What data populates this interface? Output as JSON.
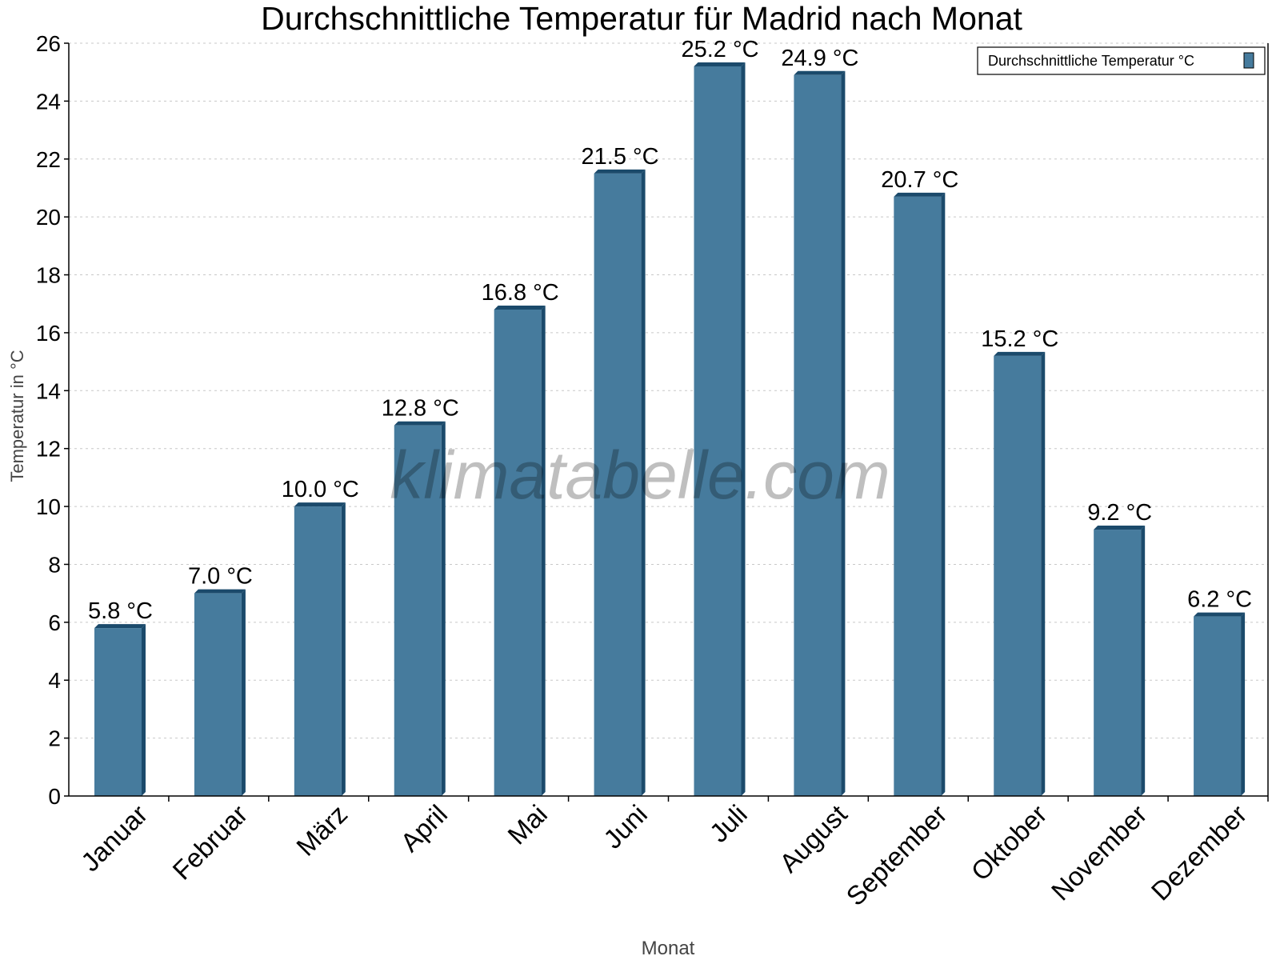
{
  "chart_data": {
    "type": "bar",
    "title": "Durchschnittliche Temperatur für Madrid nach Monat",
    "xlabel": "Monat",
    "ylabel": "Temperatur in °C",
    "categories": [
      "Januar",
      "Februar",
      "März",
      "April",
      "Mai",
      "Juni",
      "Juli",
      "August",
      "September",
      "Oktober",
      "November",
      "Dezember"
    ],
    "series": [
      {
        "name": "Durchschnittliche Temperatur °C",
        "values": [
          5.8,
          7.0,
          10.0,
          12.8,
          16.8,
          21.5,
          25.2,
          24.9,
          20.7,
          15.2,
          9.2,
          6.2
        ]
      }
    ],
    "data_labels": [
      "5.8 °C",
      "7.0 °C",
      "10.0 °C",
      "12.8 °C",
      "16.8 °C",
      "21.5 °C",
      "25.2 °C",
      "24.9 °C",
      "20.7 °C",
      "15.2 °C",
      "9.2 °C",
      "6.2 °C"
    ],
    "ylim": [
      0,
      26
    ],
    "yticks": [
      0,
      2,
      4,
      6,
      8,
      10,
      12,
      14,
      16,
      18,
      20,
      22,
      24,
      26
    ],
    "grid": true,
    "legend_position": "top-right",
    "colors": {
      "bar": "#467b9d",
      "bar_side": "#1b4a6b"
    },
    "watermark": "klimatabelle.com"
  }
}
